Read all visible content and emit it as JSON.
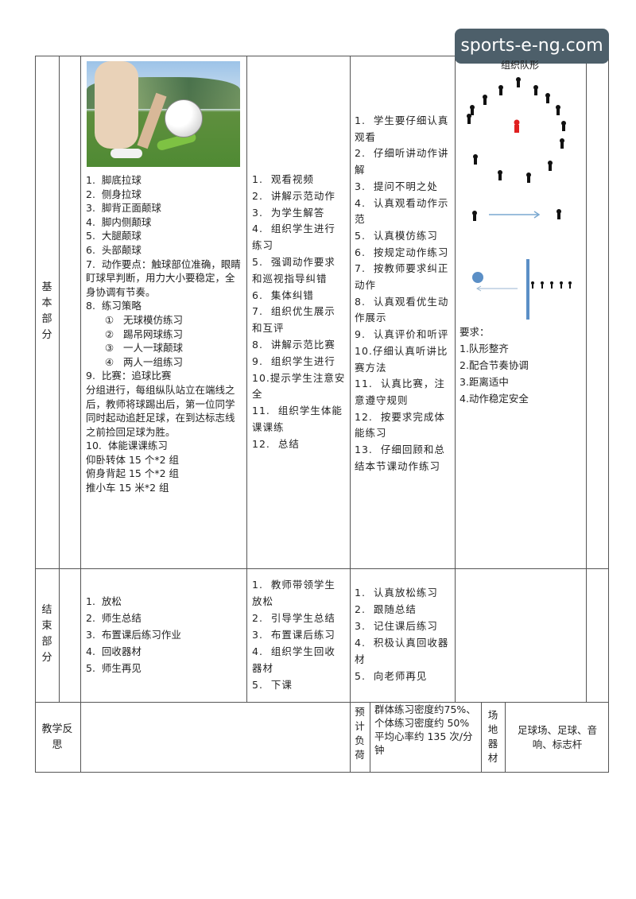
{
  "watermark": "sports-e-ng.com",
  "basic": {
    "section_label": "基本部分",
    "content": "1.  脚底拉球\n2.  侧身拉球\n3.  脚背正面颠球\n4.  脚内侧颠球\n5.  大腿颠球\n6.  头部颠球\n7.  动作要点：触球部位准确，眼睛盯球早判断，用力大小要稳定，全身协调有节奏。\n8.  练习策略\n      ①   无球模仿练习\n      ②   踢吊网球练习\n      ③   一人一球颠球\n      ④   两人一组练习\n9.  比赛：追球比赛\n分组进行，每组纵队站立在端线之后，教师将球踢出后，第一位同学同时起动追赶足球，在到达标志线之前捡回足球为胜。\n10.  体能课课练习\n仰卧转体 15 个*2 组\n俯身背起 15 个*2 组\n推小车 15 米*2 组",
    "teacher": "1.  观看视频\n2.  讲解示范动作\n3.  为学生解答\n4.  组织学生进行练习\n5.  强调动作要求和巡视指导纠错\n6.  集体纠错\n7.  组织优生展示和互评\n8.  讲解示范比赛\n9.  组织学生进行\n10.提示学生注意安全\n11.  组织学生体能课课练\n12.  总结",
    "student": "1.  学生要仔细认真观看\n2.  仔细听讲动作讲解\n3.  提问不明之处\n4.  认真观看动作示范\n5.  认真模仿练习\n6.  按规定动作练习\n7.  按教师要求纠正动作\n8.  认真观看优生动作展示\n9.  认真评价和听评\n10.仔细认真听讲比赛方法\n11.  认真比赛，注意遵守规则\n12.  按要求完成体能练习\n13.  仔细回顾和总结本节课动作练习",
    "formation_title": "组织队形",
    "requirements": "要求：\n1.队形整齐\n2.配合节奏协调\n3.距离适中\n4.动作稳定安全"
  },
  "ending": {
    "section_label": "结束部分",
    "content": "1.  放松\n2.  师生总结\n3.  布置课后练习作业\n4.  回收器材\n5.  师生再见",
    "teacher": "1.  教师带领学生放松\n2.  引导学生总结\n3.  布置课后练习\n4.  组织学生回收器材\n5.  下课",
    "student": "1.  认真放松练习\n2.  跟随总结\n3.  记住课后练习\n4.  积极认真回收器材\n5.  向老师再见"
  },
  "footer": {
    "reflection_label": "教学反思",
    "load_label": "预计负荷",
    "load_text": "群体练习密度约75%、个体练习密度约 50%\n平均心率约 135 次/分钟",
    "venue_label": "场地器材",
    "venue_text": "足球场、足球、音响、标志杆"
  }
}
